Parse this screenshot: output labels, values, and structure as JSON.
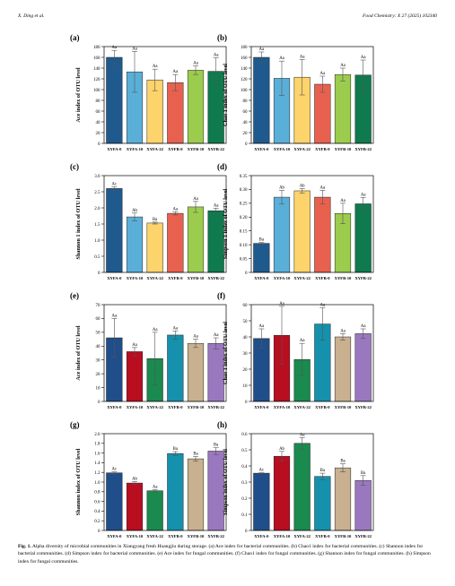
{
  "header": {
    "left": "X. Ding et al.",
    "right": "Food Chemistry: X 27 (2025) 102340"
  },
  "caption": {
    "label": "Fig. 1.",
    "text": "Alpha diversity of microbial communities in Xiangyang fresh Huangjiu during storage. (a) Ace index for bacterial communities. (b) Chao1 index for bacterial communities. (c) Shannon index for bacterial communities. (d) Simpson index for bacterial communities. (e) Ace index for fungal communities. (f) Chao1 index for fungal communities. (g) Shannon index for fungal communities. (h) Simpson index for fungal communities."
  },
  "chart_data": [
    {
      "panel": "(a)",
      "type": "bar",
      "ylabel": "Ace index of OTU level",
      "categories": [
        "XYFA-0",
        "XYFA-10",
        "XYFA-22",
        "XYFB-0",
        "XYFB-10",
        "XYFB-22"
      ],
      "values": [
        160,
        133,
        118,
        113,
        136,
        134
      ],
      "errors": [
        13,
        38,
        20,
        15,
        8,
        25
      ],
      "letters": [
        "Aa",
        "Aa",
        "Aa",
        "Aa",
        "Aa",
        "Aa"
      ],
      "ylim": [
        0,
        180
      ],
      "yticks": [
        0,
        20,
        40,
        60,
        80,
        100,
        120,
        140,
        160,
        180
      ],
      "colors": [
        "#1f5a8e",
        "#5aafd9",
        "#fdd36b",
        "#e8614f",
        "#9ccc4e",
        "#0f7a4e"
      ]
    },
    {
      "panel": "(b)",
      "type": "bar",
      "ylabel": "Chao 1 index of OTU level",
      "categories": [
        "XYFA-0",
        "XYFA-10",
        "XYFA-22",
        "XYFB-0",
        "XYFB-10",
        "XYFB-22"
      ],
      "values": [
        160,
        121,
        123,
        110,
        128,
        127
      ],
      "errors": [
        10,
        32,
        33,
        15,
        12,
        28
      ],
      "letters": [
        "Aa",
        "Aa",
        "Aa",
        "Aa",
        "Aa",
        "Aa"
      ],
      "ylim": [
        0,
        180
      ],
      "yticks": [
        0,
        20,
        40,
        60,
        80,
        100,
        120,
        140,
        160,
        180
      ],
      "colors": [
        "#1f5a8e",
        "#5aafd9",
        "#fdd36b",
        "#e8614f",
        "#9ccc4e",
        "#0f7a4e"
      ]
    },
    {
      "panel": "(c)",
      "type": "bar",
      "ylabel": "Shannon 1 index of OTU level",
      "categories": [
        "XYFA-0",
        "XYFA-10",
        "XYFA-22",
        "XYFB-0",
        "XYFB-10",
        "XYFB-22"
      ],
      "values": [
        2.6,
        1.72,
        1.53,
        1.83,
        2.03,
        1.91
      ],
      "errors": [
        0.05,
        0.12,
        0.03,
        0.05,
        0.17,
        0.08
      ],
      "letters": [
        "Ac",
        "Ab",
        "Ba",
        "Aa",
        "Aa",
        "Aa"
      ],
      "ylim": [
        0,
        3.0
      ],
      "yticks": [
        0,
        0.5,
        1.0,
        1.5,
        2.0,
        2.5,
        3.0
      ],
      "colors": [
        "#1f5a8e",
        "#5aafd9",
        "#fdd36b",
        "#e8614f",
        "#9ccc4e",
        "#0f7a4e"
      ]
    },
    {
      "panel": "(d)",
      "type": "bar",
      "ylabel": "Simpson 1 index of OTU level",
      "categories": [
        "XYFA-0",
        "XYFA-10",
        "XYFA-22",
        "XYFB-0",
        "XYFB-10",
        "XYFB-22"
      ],
      "values": [
        0.105,
        0.272,
        0.295,
        0.272,
        0.213,
        0.248
      ],
      "errors": [
        0.003,
        0.025,
        0.008,
        0.025,
        0.037,
        0.023
      ],
      "letters": [
        "Ba",
        "Ab",
        "Ab",
        "Aa",
        "Aa",
        "Aa"
      ],
      "ylim": [
        0,
        0.35
      ],
      "yticks": [
        0,
        0.05,
        0.1,
        0.15,
        0.2,
        0.25,
        0.3,
        0.35
      ],
      "colors": [
        "#1f5a8e",
        "#5aafd9",
        "#fdd36b",
        "#e8614f",
        "#9ccc4e",
        "#0f7a4e"
      ]
    },
    {
      "panel": "(e)",
      "type": "bar",
      "ylabel": "Ace index of OTU level",
      "categories": [
        "XYFA-0",
        "XYFA-10",
        "XYFA-22",
        "XYFB-0",
        "XYFB-10",
        "XYFB-22"
      ],
      "values": [
        46,
        36,
        31,
        48,
        42,
        42
      ],
      "errors": [
        14,
        3,
        19,
        3,
        3,
        4
      ],
      "letters": [
        "Aa",
        "Aa",
        "Aa",
        "Aa",
        "Aa",
        "Aa"
      ],
      "ylim": [
        0,
        70
      ],
      "yticks": [
        0,
        10,
        20,
        30,
        40,
        50,
        60,
        70
      ],
      "colors": [
        "#1f4e8a",
        "#b80e20",
        "#1a8a4e",
        "#1591ad",
        "#c9b08f",
        "#9a78bf"
      ]
    },
    {
      "panel": "(f)",
      "type": "bar",
      "ylabel": "Chao 1 index of OTU level",
      "categories": [
        "XYFA-0",
        "XYFA-10",
        "XYFA-22",
        "XYFB-0",
        "XYFB-10",
        "XYFB-22"
      ],
      "values": [
        39,
        41,
        26,
        48,
        40,
        42
      ],
      "errors": [
        6,
        18,
        10,
        10,
        2,
        3
      ],
      "letters": [
        "Aa",
        "Aa",
        "Aa",
        "Aa",
        "Aa",
        "Aa"
      ],
      "ylim": [
        0,
        60
      ],
      "yticks": [
        0,
        10,
        20,
        30,
        40,
        50,
        60
      ],
      "colors": [
        "#1f4e8a",
        "#b80e20",
        "#1a8a4e",
        "#1591ad",
        "#c9b08f",
        "#9a78bf"
      ]
    },
    {
      "panel": "(g)",
      "type": "bar",
      "ylabel": "Shannon index of OTU level",
      "categories": [
        "XYFA-0",
        "XYFA-10",
        "XYFA-22",
        "XYFB-0",
        "XYFB-10",
        "XYFB-22"
      ],
      "values": [
        1.19,
        0.98,
        0.82,
        1.59,
        1.48,
        1.64
      ],
      "errors": [
        0.02,
        0.03,
        0.02,
        0.04,
        0.05,
        0.07
      ],
      "letters": [
        "Ac",
        "Ab",
        "Aa",
        "Ba",
        "Ba",
        "Ba"
      ],
      "ylim": [
        0,
        2.0
      ],
      "yticks": [
        0,
        0.2,
        0.4,
        0.6,
        0.8,
        1.0,
        1.2,
        1.4,
        1.6,
        1.8,
        2.0
      ],
      "colors": [
        "#1f4e8a",
        "#b80e20",
        "#1a8a4e",
        "#1591ad",
        "#c9b08f",
        "#9a78bf"
      ]
    },
    {
      "panel": "(h)",
      "type": "bar",
      "ylabel": "Simpson index of OTU level",
      "categories": [
        "XYFA-0",
        "XYFA-10",
        "XYFA-22",
        "XYFB-0",
        "XYFB-10",
        "XYFB-22"
      ],
      "values": [
        0.355,
        0.46,
        0.54,
        0.335,
        0.388,
        0.31
      ],
      "errors": [
        0.003,
        0.03,
        0.035,
        0.02,
        0.025,
        0.03
      ],
      "letters": [
        "Ac",
        "Ab",
        "Aa",
        "Ba",
        "Ba",
        "Ba"
      ],
      "ylim": [
        0,
        0.6
      ],
      "yticks": [
        0,
        0.1,
        0.2,
        0.3,
        0.4,
        0.5,
        0.6
      ],
      "colors": [
        "#1f4e8a",
        "#b80e20",
        "#1a8a4e",
        "#1591ad",
        "#c9b08f",
        "#9a78bf"
      ]
    }
  ]
}
